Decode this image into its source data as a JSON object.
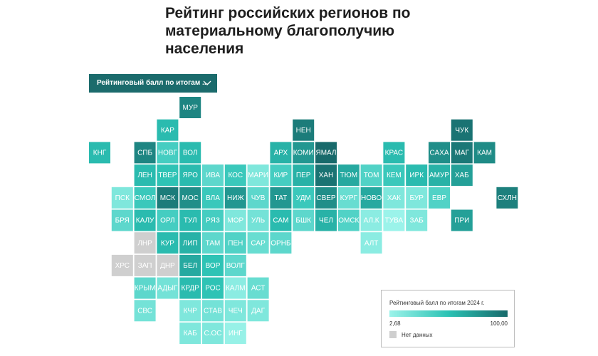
{
  "title": "Рейтинг российских регионов по материальному благополучию населения",
  "dropdown": "Рейтинговый балл по итогам ...",
  "scale": {
    "colors": [
      "#9cf3ea",
      "#2bc2b4",
      "#186a6b"
    ],
    "no_data_color": "#cfcfcf"
  },
  "legend": {
    "title": "Рейтинговый балл по итогам 2024 г.",
    "min": {
      "value": 2.68,
      "label": "2,68"
    },
    "max": {
      "value": 100,
      "label": "100,00"
    },
    "no_data": "Нет данных"
  },
  "tiles": [
    {
      "label": "МУР",
      "value": 85
    },
    {
      "label": "КАР",
      "value": 55
    },
    {
      "label": "НЕН",
      "value": 90
    },
    {
      "label": "ЧУК",
      "value": 95
    },
    {
      "label": "КНГ",
      "value": 55
    },
    {
      "label": "СПБ",
      "value": 85
    },
    {
      "label": "НОВГ",
      "value": 40
    },
    {
      "label": "ВОЛ",
      "value": 55
    },
    {
      "label": "АРХ",
      "value": 60
    },
    {
      "label": "КОМИ",
      "value": 75
    },
    {
      "label": "ЯМАЛ",
      "value": 100
    },
    {
      "label": "КРАС",
      "value": 55
    },
    {
      "label": "САХА",
      "value": 80
    },
    {
      "label": "МАГ",
      "value": 92
    },
    {
      "label": "КАМ",
      "value": 82
    },
    {
      "label": "ЛЕН",
      "value": 55
    },
    {
      "label": "ТВЕР",
      "value": 50
    },
    {
      "label": "ЯРО",
      "value": 55
    },
    {
      "label": "ИВА",
      "value": 30
    },
    {
      "label": "КОС",
      "value": 45
    },
    {
      "label": "МАРИ",
      "value": 15
    },
    {
      "label": "КИР",
      "value": 40
    },
    {
      "label": "ПЕР",
      "value": 60
    },
    {
      "label": "ХАН",
      "value": 95
    },
    {
      "label": "ТЮМ",
      "value": 65
    },
    {
      "label": "ТОМ",
      "value": 35
    },
    {
      "label": "КЕМ",
      "value": 45
    },
    {
      "label": "ИРК",
      "value": 55
    },
    {
      "label": "АМУР",
      "value": 60
    },
    {
      "label": "ХАБ",
      "value": 70
    },
    {
      "label": "ПСК",
      "value": 15
    },
    {
      "label": "СМОЛ",
      "value": 45
    },
    {
      "label": "МСК",
      "value": 90
    },
    {
      "label": "МОС",
      "value": 80
    },
    {
      "label": "ВЛА",
      "value": 45
    },
    {
      "label": "НИЖ",
      "value": 75
    },
    {
      "label": "ЧУВ",
      "value": 30
    },
    {
      "label": "ТАТ",
      "value": 75
    },
    {
      "label": "УДМ",
      "value": 45
    },
    {
      "label": "СВЕР",
      "value": 80
    },
    {
      "label": "КУРГ",
      "value": 25
    },
    {
      "label": "НОВО",
      "value": 65
    },
    {
      "label": "ХАК",
      "value": 15
    },
    {
      "label": "БУР",
      "value": 15
    },
    {
      "label": "ЕВР",
      "value": 35
    },
    {
      "label": "СХЛН",
      "value": 88
    },
    {
      "label": "БРЯ",
      "value": 30
    },
    {
      "label": "КАЛУ",
      "value": 55
    },
    {
      "label": "ОРЛ",
      "value": 40
    },
    {
      "label": "ТУЛ",
      "value": 55
    },
    {
      "label": "РЯЗ",
      "value": 40
    },
    {
      "label": "МОР",
      "value": 15
    },
    {
      "label": "УЛЬ",
      "value": 20
    },
    {
      "label": "САМ",
      "value": 55
    },
    {
      "label": "БШК",
      "value": 30
    },
    {
      "label": "ЧЕЛ",
      "value": 60
    },
    {
      "label": "ОМСК",
      "value": 35
    },
    {
      "label": "АЛ.К",
      "value": 10
    },
    {
      "label": "ТУВА",
      "value": 3
    },
    {
      "label": "ЗАБ",
      "value": 15
    },
    {
      "label": "ПРИ",
      "value": 70
    },
    {
      "label": "ЛНР",
      "value": null
    },
    {
      "label": "КУР",
      "value": 55
    },
    {
      "label": "ЛИП",
      "value": 60
    },
    {
      "label": "ТАМ",
      "value": 30
    },
    {
      "label": "ПЕН",
      "value": 35
    },
    {
      "label": "САР",
      "value": 25
    },
    {
      "label": "ОРНБ",
      "value": 30
    },
    {
      "label": "АЛТ",
      "value": 10
    },
    {
      "label": "ХРС",
      "value": null
    },
    {
      "label": "ЗАП",
      "value": null
    },
    {
      "label": "ДНР",
      "value": null
    },
    {
      "label": "БЕЛ",
      "value": 65
    },
    {
      "label": "ВОР",
      "value": 50
    },
    {
      "label": "ВОЛГ",
      "value": 30
    },
    {
      "label": "КРЫМ",
      "value": 30
    },
    {
      "label": "АДЫГ",
      "value": 20
    },
    {
      "label": "КРДР",
      "value": 55
    },
    {
      "label": "РОС",
      "value": 50
    },
    {
      "label": "КАЛМ",
      "value": 10
    },
    {
      "label": "АСТ",
      "value": 25
    },
    {
      "label": "СВС",
      "value": 20
    },
    {
      "label": "КЧР",
      "value": 15
    },
    {
      "label": "СТАВ",
      "value": 20
    },
    {
      "label": "ЧЕЧ",
      "value": 15
    },
    {
      "label": "ДАГ",
      "value": 15
    },
    {
      "label": "КАБ",
      "value": 15
    },
    {
      "label": "С.ОС",
      "value": 15
    },
    {
      "label": "ИНГ",
      "value": 5
    }
  ]
}
